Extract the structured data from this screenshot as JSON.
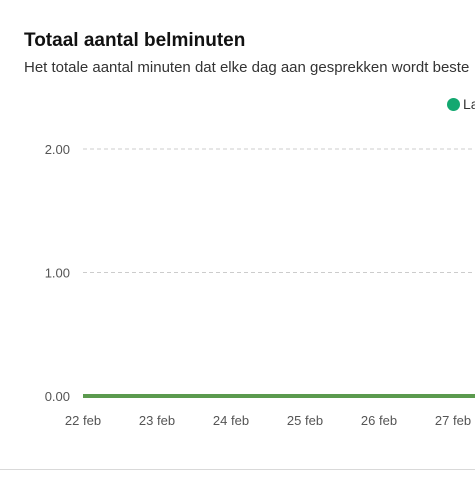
{
  "card": {
    "title": "Totaal aantal belminuten",
    "subtitle": "Het totale aantal minuten dat elke dag aan gesprekken wordt beste",
    "legend_label": "La"
  },
  "colors": {
    "series_line": "#5b9a4e",
    "legend_dot": "#13a870",
    "grid": "#cccccc"
  },
  "chart_data": {
    "type": "line",
    "title": "Totaal aantal belminuten",
    "subtitle": "Het totale aantal minuten dat elke dag aan gesprekken wordt beste",
    "categories": [
      "22 feb",
      "23 feb",
      "24 feb",
      "25 feb",
      "26 feb",
      "27 feb"
    ],
    "y_ticks": [
      "0.00",
      "1.00",
      "2.00"
    ],
    "ylim": [
      0,
      2
    ],
    "grid": true,
    "legend_position": "top-right",
    "series": [
      {
        "name": "La",
        "values": [
          0,
          0,
          0,
          0,
          0,
          0
        ]
      }
    ]
  }
}
